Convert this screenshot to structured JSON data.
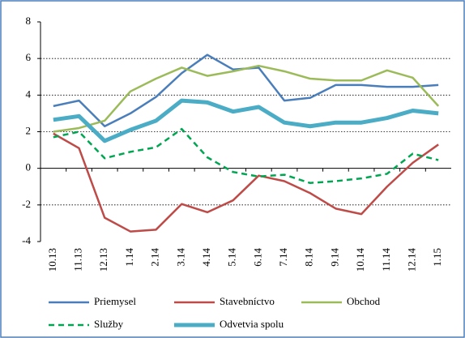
{
  "chart_data": {
    "type": "line",
    "categories": [
      "10.13",
      "11.13",
      "12.13",
      "1.14",
      "2.14",
      "3.14",
      "4.14",
      "5.14",
      "6.14",
      "7.14",
      "8.14",
      "9.14",
      "10.14",
      "11.14",
      "12.14",
      "1.15"
    ],
    "series": [
      {
        "name": "Priemysel",
        "color": "#4a7ebb",
        "values": [
          3.4,
          3.7,
          2.3,
          3.0,
          3.9,
          5.2,
          6.2,
          5.4,
          5.5,
          3.7,
          3.85,
          4.55,
          4.55,
          4.45,
          4.45,
          4.55
        ]
      },
      {
        "name": "Stavebníctvo",
        "color": "#be4b48",
        "values": [
          1.9,
          1.1,
          -2.7,
          -3.45,
          -3.35,
          -1.95,
          -2.4,
          -1.75,
          -0.4,
          -0.7,
          -1.35,
          -2.2,
          -2.5,
          -1.0,
          0.3,
          1.3
        ]
      },
      {
        "name": "Obchod",
        "color": "#9bbb59",
        "values": [
          2.0,
          2.2,
          2.6,
          4.2,
          4.9,
          5.5,
          5.05,
          5.3,
          5.6,
          5.3,
          4.9,
          4.8,
          4.8,
          5.35,
          4.95,
          3.4
        ]
      },
      {
        "name": "Služby",
        "color": "#00a651",
        "dashed": true,
        "values": [
          1.7,
          2.0,
          0.55,
          0.9,
          1.15,
          2.15,
          0.6,
          -0.2,
          -0.45,
          -0.35,
          -0.8,
          -0.7,
          -0.55,
          -0.3,
          0.8,
          0.45
        ]
      },
      {
        "name": "Odvetvia spolu",
        "color": "#4bacc6",
        "values": [
          2.65,
          2.85,
          1.5,
          2.1,
          2.6,
          3.7,
          3.6,
          3.1,
          3.35,
          2.5,
          2.3,
          2.5,
          2.5,
          2.75,
          3.15,
          3.0
        ]
      }
    ],
    "ylim": [
      -4,
      8
    ],
    "yticks": [
      -4,
      -2,
      0,
      2,
      4,
      6,
      8
    ],
    "grid": true
  }
}
